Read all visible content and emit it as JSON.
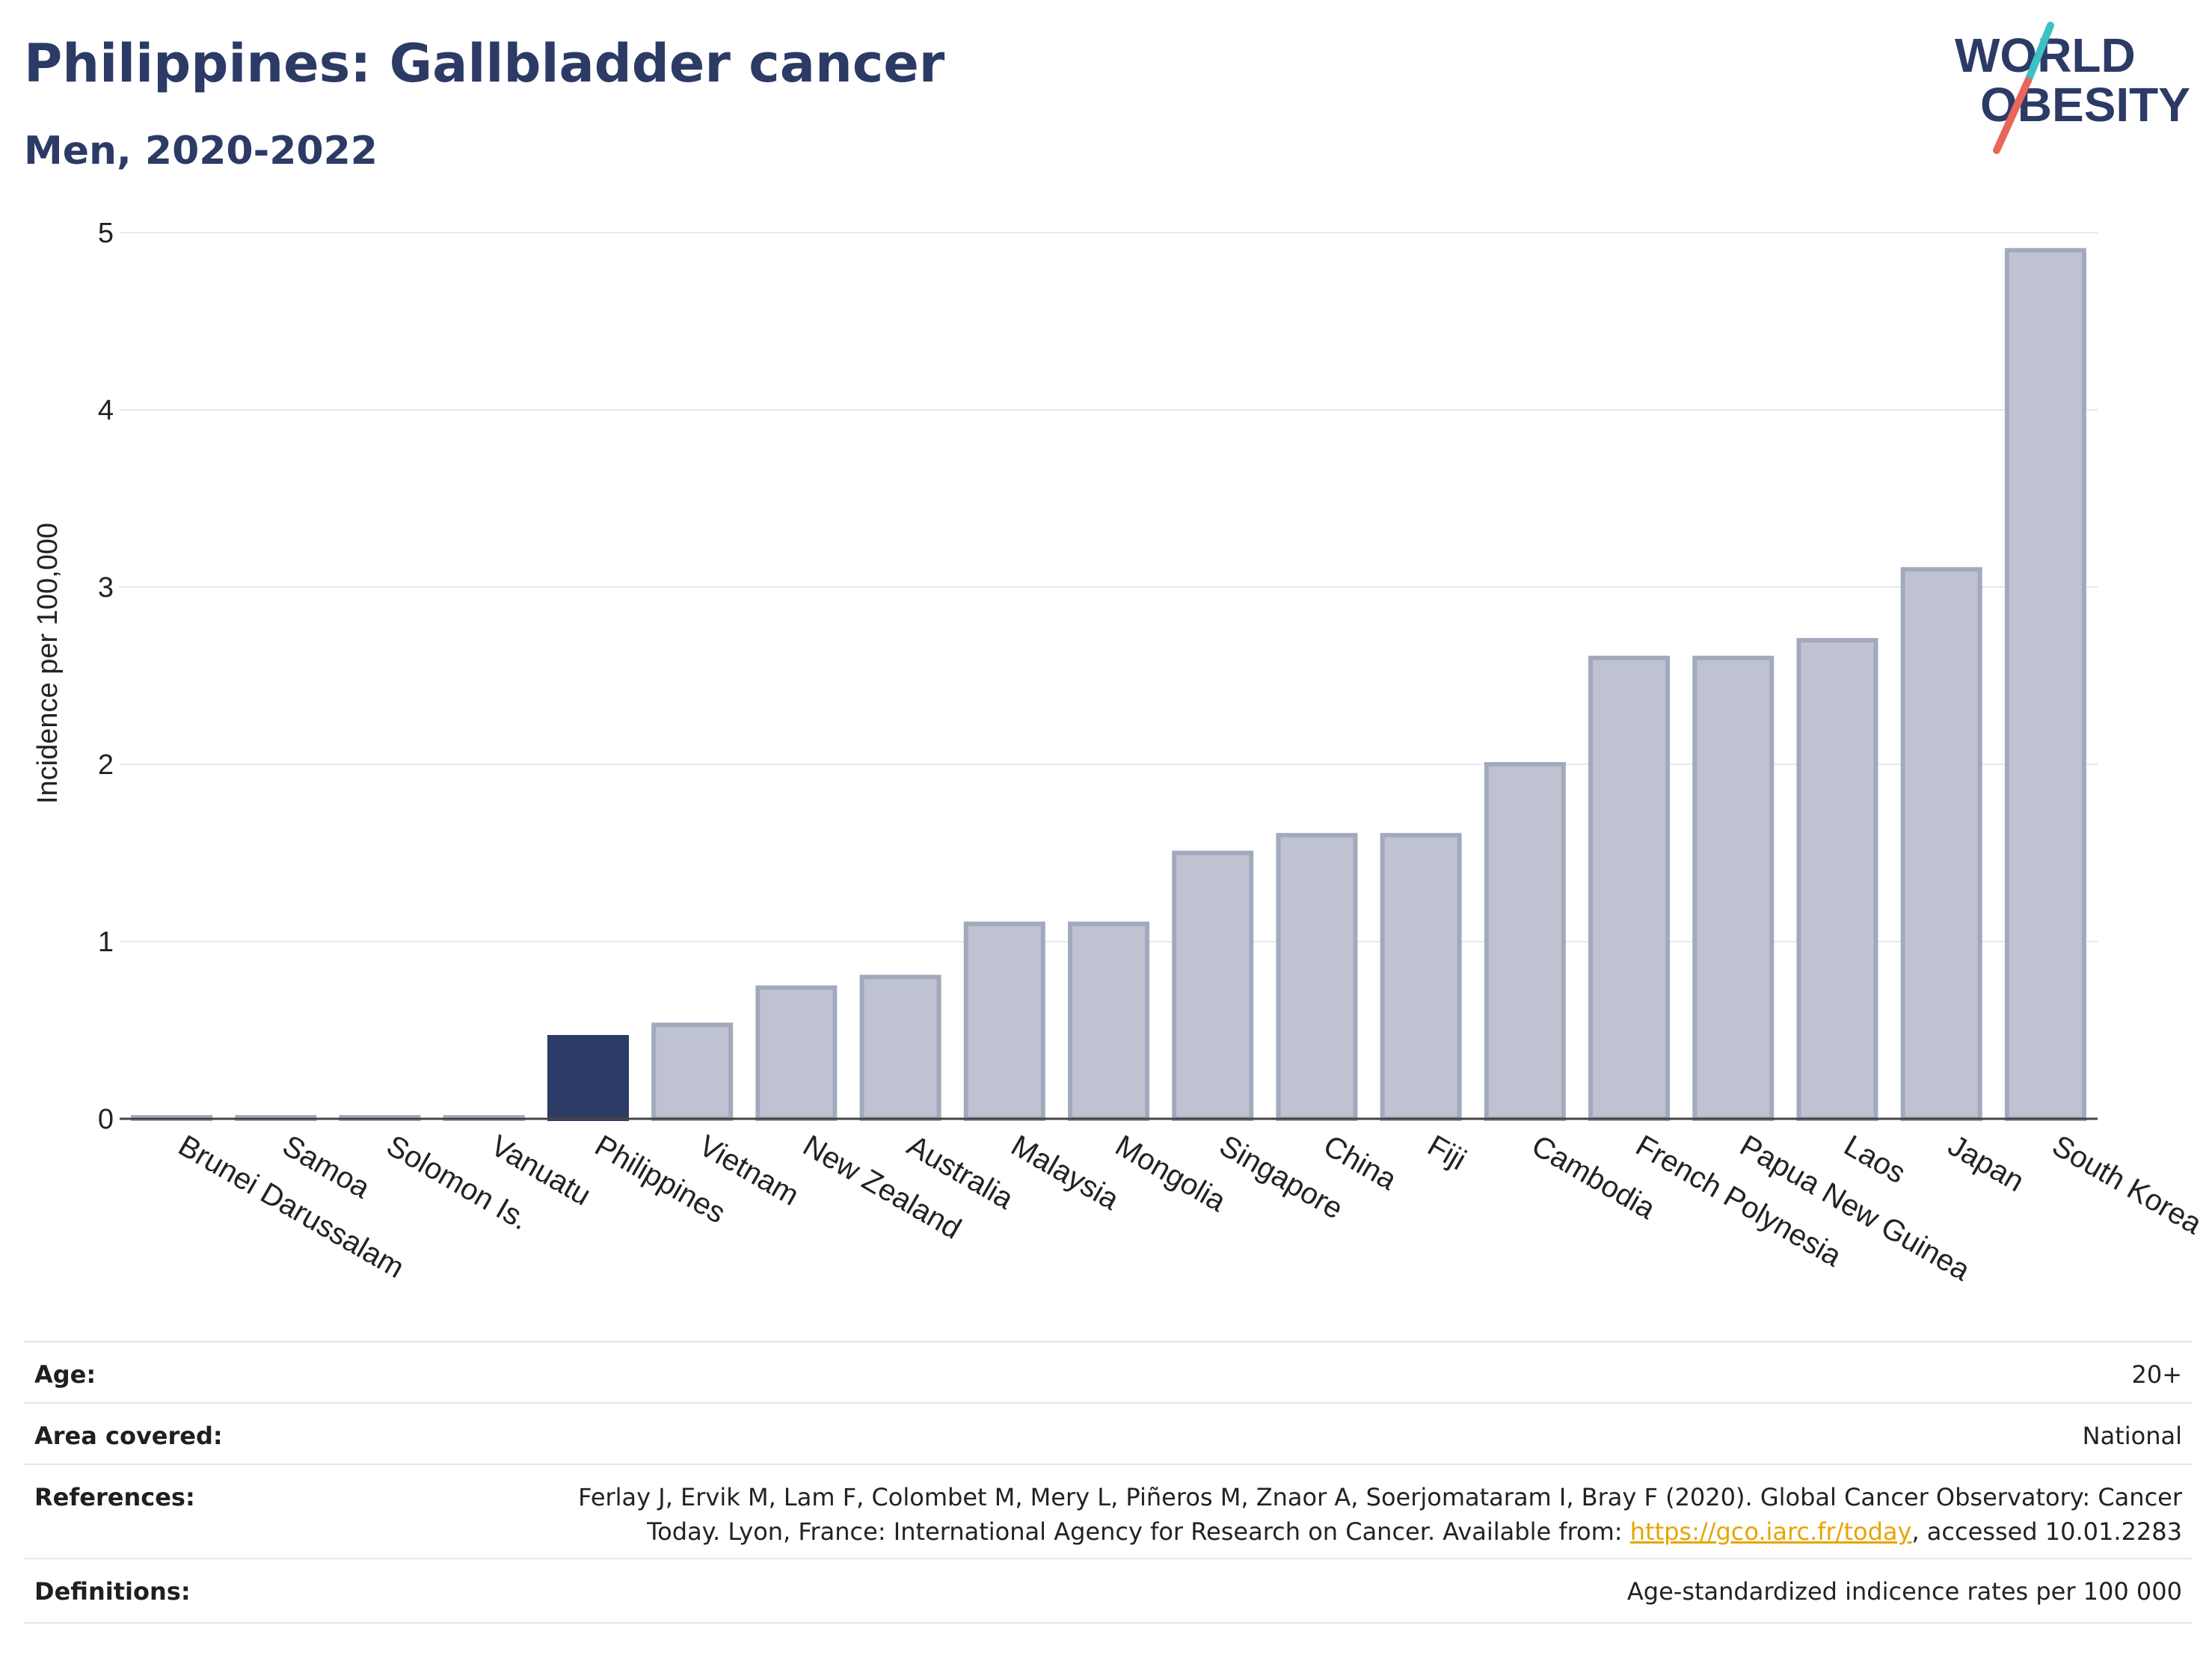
{
  "header": {
    "title": "Philippines: Gallbladder cancer",
    "subtitle": "Men, 2020-2022"
  },
  "logo": {
    "line1": "WORLD",
    "line2": "OBESITY",
    "slash_colors": [
      "#3cc1c4",
      "#e8665a"
    ]
  },
  "colors": {
    "highlight": "#2c3a66",
    "bar": "#bfc3d1",
    "bar_stroke": "#a3a9bd",
    "grid": "#e6e8ee",
    "axis": "#333333"
  },
  "chart_data": {
    "type": "bar",
    "ylabel": "Incidence per 100,000",
    "xlabel": "",
    "ylim": [
      0,
      5
    ],
    "yticks": [
      0,
      1,
      2,
      3,
      4,
      5
    ],
    "grid": true,
    "highlight_category": "Philippines",
    "categories": [
      "Brunei Darussalam",
      "Samoa",
      "Solomon Is.",
      "Vanuatu",
      "Philippines",
      "Vietnam",
      "New Zealand",
      "Australia",
      "Malaysia",
      "Mongolia",
      "Singapore",
      "China",
      "Fiji",
      "Cambodia",
      "French Polynesia",
      "Papua New Guinea",
      "Laos",
      "Japan",
      "South Korea"
    ],
    "values": [
      0,
      0,
      0,
      0,
      0.46,
      0.53,
      0.74,
      0.8,
      1.1,
      1.1,
      1.5,
      1.6,
      1.6,
      2.0,
      2.6,
      2.6,
      2.7,
      3.1,
      4.9
    ]
  },
  "info": {
    "age_label": "Age:",
    "age_value": "20+",
    "area_label": "Area covered:",
    "area_value": "National",
    "references_label": "References:",
    "references_line1": "Ferlay J, Ervik M, Lam F, Colombet M, Mery L, Piñeros M, Znaor A, Soerjomataram I, Bray F (2020). Global Cancer Observatory: Cancer",
    "references_line2_pre": "Today. Lyon, France: International Agency for Research on Cancer. Available from: ",
    "references_link": "https://gco.iarc.fr/today",
    "references_line2_post": ", accessed 10.01.2283",
    "definitions_label": "Definitions:",
    "definitions_value": "Age-standardized indicence rates per 100 000"
  }
}
